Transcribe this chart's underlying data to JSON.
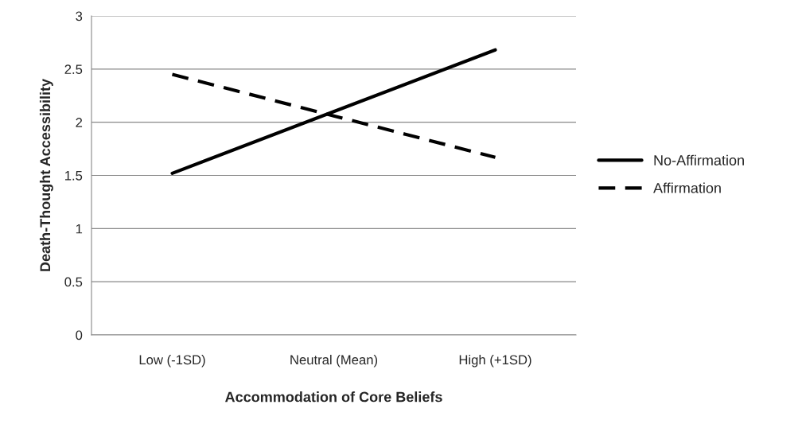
{
  "chart_data": {
    "type": "line",
    "xlabel": "Accommodation of Core Beliefs",
    "ylabel": "Death-Thought Accessibility",
    "categories": [
      "Low (-1SD)",
      "Neutral (Mean)",
      "High (+1SD)"
    ],
    "series": [
      {
        "name": "No-Affirmation",
        "color": "#000000",
        "line_style": "solid",
        "values": [
          1.52,
          2.1,
          2.68
        ]
      },
      {
        "name": "Affirmation",
        "color": "#000000",
        "line_style": "dashed",
        "values": [
          2.45,
          2.06,
          1.67
        ]
      }
    ],
    "ylim": [
      0,
      3
    ],
    "yticks": [
      0,
      0.5,
      1,
      1.5,
      2,
      2.5,
      3
    ],
    "grid": "y",
    "legend": "right",
    "marker": "none"
  }
}
